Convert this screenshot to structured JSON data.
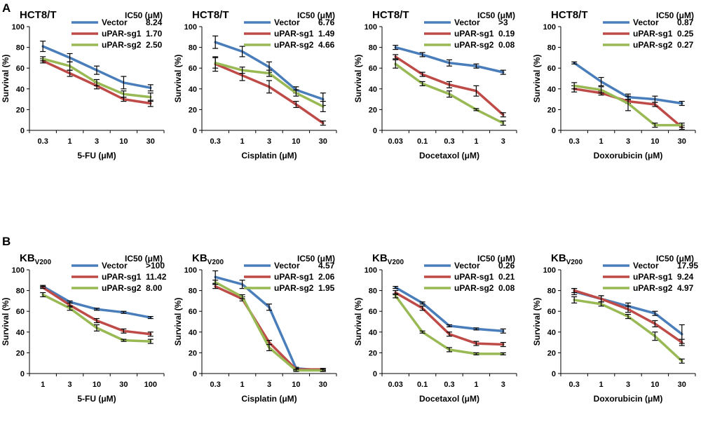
{
  "figure": {
    "panel_labels": [
      "A",
      "B"
    ]
  },
  "colors": {
    "Vector": "#4a7ebb",
    "uPAR-sg1": "#be4b48",
    "uPAR-sg2": "#98b954"
  },
  "chart_data": [
    {
      "type": "line",
      "panel": "A",
      "title": "HCT8/T",
      "title_sub": "",
      "xlabel": "5-FU (μM)",
      "ylabel": "Survival (%)",
      "categories": [
        "0.3",
        "1",
        "3",
        "10",
        "30"
      ],
      "ylim": [
        0,
        100
      ],
      "yticks": [
        0,
        20,
        40,
        60,
        80,
        100
      ],
      "ic50_header": "IC50 (μM)",
      "series": [
        {
          "name": "Vector",
          "ic50": "8.24",
          "values": [
            81,
            70,
            58,
            46,
            41
          ],
          "errors": [
            5,
            4,
            4,
            6,
            3
          ]
        },
        {
          "name": "uPAR-sg1",
          "ic50": "1.70",
          "values": [
            67,
            55,
            43,
            30,
            26
          ],
          "errors": [
            2,
            3,
            3,
            2,
            3
          ]
        },
        {
          "name": "uPAR-sg2",
          "ic50": "2.50",
          "values": [
            69,
            62,
            46,
            35,
            32
          ],
          "errors": [
            2,
            4,
            3,
            3,
            4
          ]
        }
      ]
    },
    {
      "type": "line",
      "panel": "A",
      "title": "HCT8/T",
      "title_sub": "",
      "xlabel": "Cisplatin (μM)",
      "ylabel": "Survival (%)",
      "categories": [
        "0.3",
        "1",
        "3",
        "10",
        "30"
      ],
      "ylim": [
        0,
        100
      ],
      "yticks": [
        0,
        20,
        40,
        60,
        80,
        100
      ],
      "ic50_header": "IC50 (μM)",
      "series": [
        {
          "name": "Vector",
          "ic50": "6.76",
          "values": [
            85,
            76,
            61,
            39,
            30
          ],
          "errors": [
            6,
            5,
            5,
            3,
            6
          ]
        },
        {
          "name": "uPAR-sg1",
          "ic50": "1.49",
          "values": [
            64,
            53,
            42,
            25,
            7
          ],
          "errors": [
            7,
            5,
            6,
            3,
            2
          ]
        },
        {
          "name": "uPAR-sg2",
          "ic50": "4.66",
          "values": [
            65,
            58,
            55,
            36,
            23
          ],
          "errors": [
            5,
            3,
            3,
            3,
            5
          ]
        }
      ]
    },
    {
      "type": "line",
      "panel": "A",
      "title": "HCT8/T",
      "title_sub": "",
      "xlabel": "Docetaxol (μM)",
      "ylabel": "Survival (%)",
      "categories": [
        "0.03",
        "0.1",
        "0.3",
        "1",
        "3"
      ],
      "ylim": [
        0,
        100
      ],
      "yticks": [
        0,
        20,
        40,
        60,
        80,
        100
      ],
      "ic50_header": "IC50 (μM)",
      "series": [
        {
          "name": "Vector",
          "ic50": ">3",
          "values": [
            80,
            73,
            65,
            62,
            56
          ],
          "errors": [
            2,
            2,
            3,
            2,
            2
          ]
        },
        {
          "name": "uPAR-sg1",
          "ic50": "0.19",
          "values": [
            71,
            54,
            44,
            38,
            15
          ],
          "errors": [
            2,
            2,
            3,
            5,
            2
          ]
        },
        {
          "name": "uPAR-sg2",
          "ic50": "0.08",
          "values": [
            64,
            45,
            35,
            20,
            7
          ],
          "errors": [
            4,
            2,
            3,
            1,
            2
          ]
        }
      ]
    },
    {
      "type": "line",
      "panel": "A",
      "title": "HCT8/T",
      "title_sub": "",
      "xlabel": "Doxorubicin (μM)",
      "ylabel": "Survival (%)",
      "categories": [
        "0.3",
        "1",
        "3",
        "10",
        "30"
      ],
      "ylim": [
        0,
        100
      ],
      "yticks": [
        0,
        20,
        40,
        60,
        80,
        100
      ],
      "ic50_header": "IC50 (μM)",
      "series": [
        {
          "name": "Vector",
          "ic50": "0.87",
          "values": [
            65,
            47,
            32,
            30,
            26
          ],
          "errors": [
            1,
            4,
            3,
            3,
            2
          ]
        },
        {
          "name": "uPAR-sg1",
          "ic50": "0.25",
          "values": [
            40,
            36,
            28,
            25,
            3
          ],
          "errors": [
            3,
            2,
            2,
            2,
            2
          ]
        },
        {
          "name": "uPAR-sg2",
          "ic50": "0.27",
          "values": [
            43,
            39,
            26,
            5,
            5
          ],
          "errors": [
            3,
            3,
            7,
            2,
            2
          ]
        }
      ]
    },
    {
      "type": "line",
      "panel": "B",
      "title": "KB",
      "title_sub": "V200",
      "xlabel": "5-FU (μM)",
      "ylabel": "Survival (%)",
      "categories": [
        "1",
        "3",
        "10",
        "30",
        "100"
      ],
      "ylim": [
        0,
        100
      ],
      "yticks": [
        0,
        20,
        40,
        60,
        80,
        100
      ],
      "ic50_header": "IC50 (μM)",
      "series": [
        {
          "name": "Vector",
          "ic50": ">100",
          "values": [
            84,
            69,
            62,
            59,
            54
          ],
          "errors": [
            1,
            1,
            1,
            1,
            1
          ]
        },
        {
          "name": "uPAR-sg1",
          "ic50": "11.42",
          "values": [
            83,
            66,
            51,
            41,
            38
          ],
          "errors": [
            1,
            2,
            2,
            2,
            2
          ]
        },
        {
          "name": "uPAR-sg2",
          "ic50": "8.00",
          "values": [
            76,
            63,
            44,
            32,
            31
          ],
          "errors": [
            2,
            2,
            3,
            1,
            2
          ]
        }
      ]
    },
    {
      "type": "line",
      "panel": "B",
      "title": "KB",
      "title_sub": "V200",
      "xlabel": "Cisplatin (μM)",
      "ylabel": "Survival (%)",
      "categories": [
        "0.3",
        "1",
        "3",
        "10",
        "30"
      ],
      "ylim": [
        0,
        100
      ],
      "yticks": [
        0,
        20,
        40,
        60,
        80,
        100
      ],
      "ic50_header": "IC50 (μM)",
      "series": [
        {
          "name": "Vector",
          "ic50": "4.57",
          "values": [
            93,
            86,
            64,
            5,
            3
          ],
          "errors": [
            6,
            4,
            3,
            1,
            1
          ]
        },
        {
          "name": "uPAR-sg1",
          "ic50": "2.06",
          "values": [
            84,
            72,
            30,
            4,
            4
          ],
          "errors": [
            2,
            2,
            2,
            1,
            1
          ]
        },
        {
          "name": "uPAR-sg2",
          "ic50": "1.95",
          "values": [
            88,
            74,
            25,
            3,
            3
          ],
          "errors": [
            2,
            2,
            3,
            1,
            1
          ]
        }
      ]
    },
    {
      "type": "line",
      "panel": "B",
      "title": "KB",
      "title_sub": "V200",
      "xlabel": "Docetaxol (μM)",
      "ylabel": "Survival (%)",
      "categories": [
        "0.03",
        "0.1",
        "0.3",
        "1",
        "3"
      ],
      "ylim": [
        0,
        100
      ],
      "yticks": [
        0,
        20,
        40,
        60,
        80,
        100
      ],
      "ic50_header": "IC50 (μM)",
      "series": [
        {
          "name": "Vector",
          "ic50": "0.26",
          "values": [
            83,
            68,
            46,
            43,
            41
          ],
          "errors": [
            1,
            1,
            1,
            1,
            2
          ]
        },
        {
          "name": "uPAR-sg1",
          "ic50": "0.21",
          "values": [
            78,
            63,
            38,
            29,
            28
          ],
          "errors": [
            2,
            2,
            2,
            2,
            2
          ]
        },
        {
          "name": "uPAR-sg2",
          "ic50": "0.08",
          "values": [
            75,
            40,
            23,
            19,
            19
          ],
          "errors": [
            2,
            1,
            2,
            1,
            1
          ]
        }
      ]
    },
    {
      "type": "line",
      "panel": "B",
      "title": "KB",
      "title_sub": "V200",
      "xlabel": "Doxorubicin (μM)",
      "ylabel": "Survival (%)",
      "categories": [
        "0.3",
        "1",
        "3",
        "10",
        "30"
      ],
      "ylim": [
        0,
        100
      ],
      "yticks": [
        0,
        20,
        40,
        60,
        80,
        100
      ],
      "ic50_header": "IC50 (μM)",
      "series": [
        {
          "name": "Vector",
          "ic50": "17.95",
          "values": [
            79,
            72,
            65,
            58,
            38
          ],
          "errors": [
            3,
            3,
            3,
            2,
            9
          ]
        },
        {
          "name": "uPAR-sg1",
          "ic50": "9.24",
          "values": [
            80,
            72,
            62,
            48,
            30
          ],
          "errors": [
            2,
            3,
            3,
            3,
            3
          ]
        },
        {
          "name": "uPAR-sg2",
          "ic50": "4.97",
          "values": [
            71,
            67,
            55,
            36,
            12
          ],
          "errors": [
            3,
            2,
            2,
            4,
            2
          ]
        }
      ]
    }
  ]
}
